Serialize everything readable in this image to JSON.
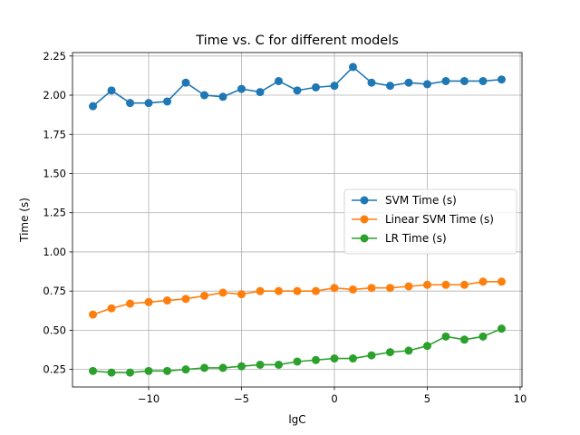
{
  "chart_data": {
    "type": "line",
    "title": "Time vs. C for different models",
    "xlabel": "lgC",
    "ylabel": "Time (s)",
    "xlim": [
      -14.1,
      10.1
    ],
    "ylim": [
      0.138,
      2.272
    ],
    "xticks": [
      -10,
      -5,
      0,
      5,
      10
    ],
    "xtick_labels": [
      "−10",
      "−5",
      "0",
      "5",
      "10"
    ],
    "yticks": [
      0.25,
      0.5,
      0.75,
      1.0,
      1.25,
      1.5,
      1.75,
      2.0,
      2.25
    ],
    "ytick_labels": [
      "0.25",
      "0.50",
      "0.75",
      "1.00",
      "1.25",
      "1.50",
      "1.75",
      "2.00",
      "2.25"
    ],
    "grid": true,
    "legend_position": "center-right",
    "x": [
      -13,
      -12,
      -11,
      -10,
      -9,
      -8,
      -7,
      -6,
      -5,
      -4,
      -3,
      -2,
      -1,
      0,
      1,
      2,
      3,
      4,
      5,
      6,
      7,
      8,
      9
    ],
    "series": [
      {
        "name": "SVM Time (s)",
        "color": "#1f77b4",
        "values": [
          1.93,
          2.03,
          1.95,
          1.95,
          1.96,
          2.08,
          2.0,
          1.99,
          2.04,
          2.02,
          2.09,
          2.03,
          2.05,
          2.06,
          2.18,
          2.08,
          2.06,
          2.08,
          2.07,
          2.09,
          2.09,
          2.09,
          2.1
        ]
      },
      {
        "name": "Linear SVM Time (s)",
        "color": "#ff7f0e",
        "values": [
          0.6,
          0.64,
          0.67,
          0.68,
          0.69,
          0.7,
          0.72,
          0.74,
          0.73,
          0.75,
          0.75,
          0.75,
          0.75,
          0.77,
          0.76,
          0.77,
          0.77,
          0.78,
          0.79,
          0.79,
          0.79,
          0.81,
          0.81
        ]
      },
      {
        "name": "LR Time (s)",
        "color": "#2ca02c",
        "values": [
          0.24,
          0.23,
          0.23,
          0.24,
          0.24,
          0.25,
          0.26,
          0.26,
          0.27,
          0.28,
          0.28,
          0.3,
          0.31,
          0.32,
          0.32,
          0.34,
          0.36,
          0.37,
          0.4,
          0.46,
          0.44,
          0.46,
          0.51
        ]
      }
    ]
  }
}
